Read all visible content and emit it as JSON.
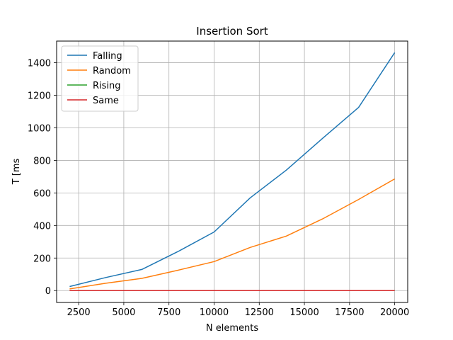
{
  "chart_data": {
    "type": "line",
    "title": "Insertion Sort",
    "xlabel": "N elements",
    "ylabel": "T [ms",
    "xlim": [
      1280,
      20720
    ],
    "ylim": [
      -73,
      1533
    ],
    "x_ticks": [
      2500,
      5000,
      7500,
      10000,
      12500,
      15000,
      17500,
      20000
    ],
    "y_ticks": [
      0,
      200,
      400,
      600,
      800,
      1000,
      1200,
      1400
    ],
    "x": [
      2000,
      4000,
      6000,
      8000,
      10000,
      12000,
      14000,
      16000,
      18000,
      20000
    ],
    "grid": true,
    "legend_position": "top-left",
    "series": [
      {
        "name": "Falling",
        "color": "#1f77b4",
        "values": [
          25,
          80,
          130,
          240,
          360,
          570,
          740,
          935,
          1125,
          1462
        ]
      },
      {
        "name": "Random",
        "color": "#ff7f0e",
        "values": [
          10,
          45,
          75,
          125,
          178,
          265,
          335,
          440,
          560,
          686
        ]
      },
      {
        "name": "Rising",
        "color": "#2ca02c",
        "values": [
          0,
          0,
          0,
          0,
          0,
          0,
          0,
          0,
          0,
          0
        ]
      },
      {
        "name": "Same",
        "color": "#d62728",
        "values": [
          0,
          0,
          0,
          0,
          0,
          0,
          0,
          0,
          0,
          0
        ]
      }
    ]
  }
}
